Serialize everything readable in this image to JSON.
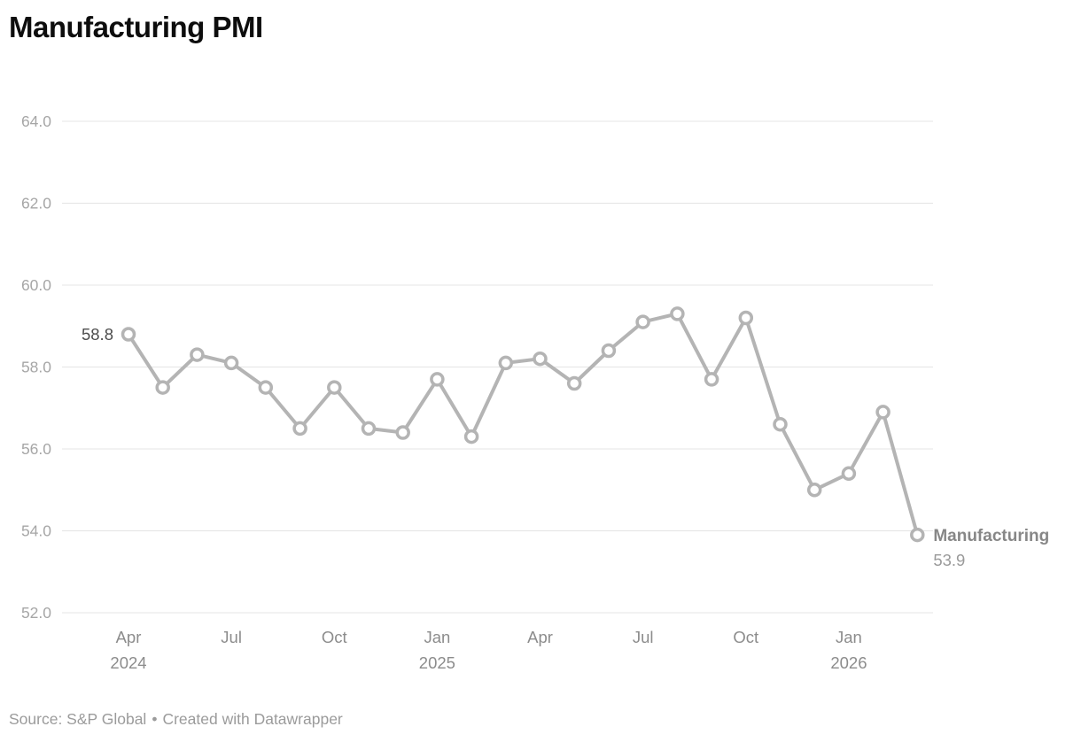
{
  "header": {
    "title": "Manufacturing PMI"
  },
  "chart_data": {
    "type": "line",
    "title": "Manufacturing PMI",
    "xlabel": "",
    "ylabel": "",
    "grid": "horizontal",
    "legend_position": "end-of-line",
    "series": [
      {
        "name": "Manufacturing",
        "x": [
          "Apr 2024",
          "May 2024",
          "Jun 2024",
          "Jul 2024",
          "Aug 2024",
          "Sep 2024",
          "Oct 2024",
          "Nov 2024",
          "Dec 2024",
          "Jan 2025",
          "Feb 2025",
          "Mar 2025",
          "Apr 2025",
          "May 2025",
          "Jun 2025",
          "Jul 2025",
          "Aug 2025",
          "Sep 2025",
          "Oct 2025",
          "Nov 2025",
          "Dec 2025",
          "Jan 2026",
          "Feb 2026",
          "Mar 2026"
        ],
        "values": [
          58.8,
          57.5,
          58.3,
          58.1,
          57.5,
          56.5,
          57.5,
          56.5,
          56.4,
          57.7,
          56.3,
          58.1,
          58.2,
          57.6,
          58.4,
          59.1,
          59.3,
          57.7,
          59.2,
          56.6,
          55.0,
          55.4,
          56.9,
          53.9
        ]
      }
    ],
    "ylim": [
      52,
      64
    ],
    "yticks": [
      64,
      62,
      60,
      58,
      56,
      54,
      52
    ],
    "ytick_labels": [
      "64.0",
      "62.0",
      "60.0",
      "58.0",
      "56.0",
      "54.0",
      "52.0"
    ],
    "xticks": [
      {
        "index": 0,
        "label": "Apr",
        "year": "2024"
      },
      {
        "index": 3,
        "label": "Jul",
        "year": ""
      },
      {
        "index": 6,
        "label": "Oct",
        "year": ""
      },
      {
        "index": 9,
        "label": "Jan",
        "year": "2025"
      },
      {
        "index": 12,
        "label": "Apr",
        "year": ""
      },
      {
        "index": 15,
        "label": "Jul",
        "year": ""
      },
      {
        "index": 18,
        "label": "Oct",
        "year": ""
      },
      {
        "index": 21,
        "label": "Jan",
        "year": "2026"
      }
    ],
    "annotations": {
      "first_point_label": "58.8",
      "end_series_label": "Manufacturing",
      "end_value_label": "53.9"
    },
    "colors": {
      "line": "#b4b4b4",
      "marker_fill": "#ffffff",
      "marker_stroke": "#b4b4b4",
      "grid": "#e4e4e4",
      "ytick_text": "#a6a6a6",
      "xtick_text": "#8c8c8c",
      "first_label_text": "#4d4d4d",
      "end_label_text": "#878787",
      "end_value_text": "#9a9a9a",
      "title_text": "#0d0d0d"
    }
  },
  "footer": {
    "source": "Source: S&P Global",
    "separator": "•",
    "attribution": "Created with Datawrapper"
  }
}
